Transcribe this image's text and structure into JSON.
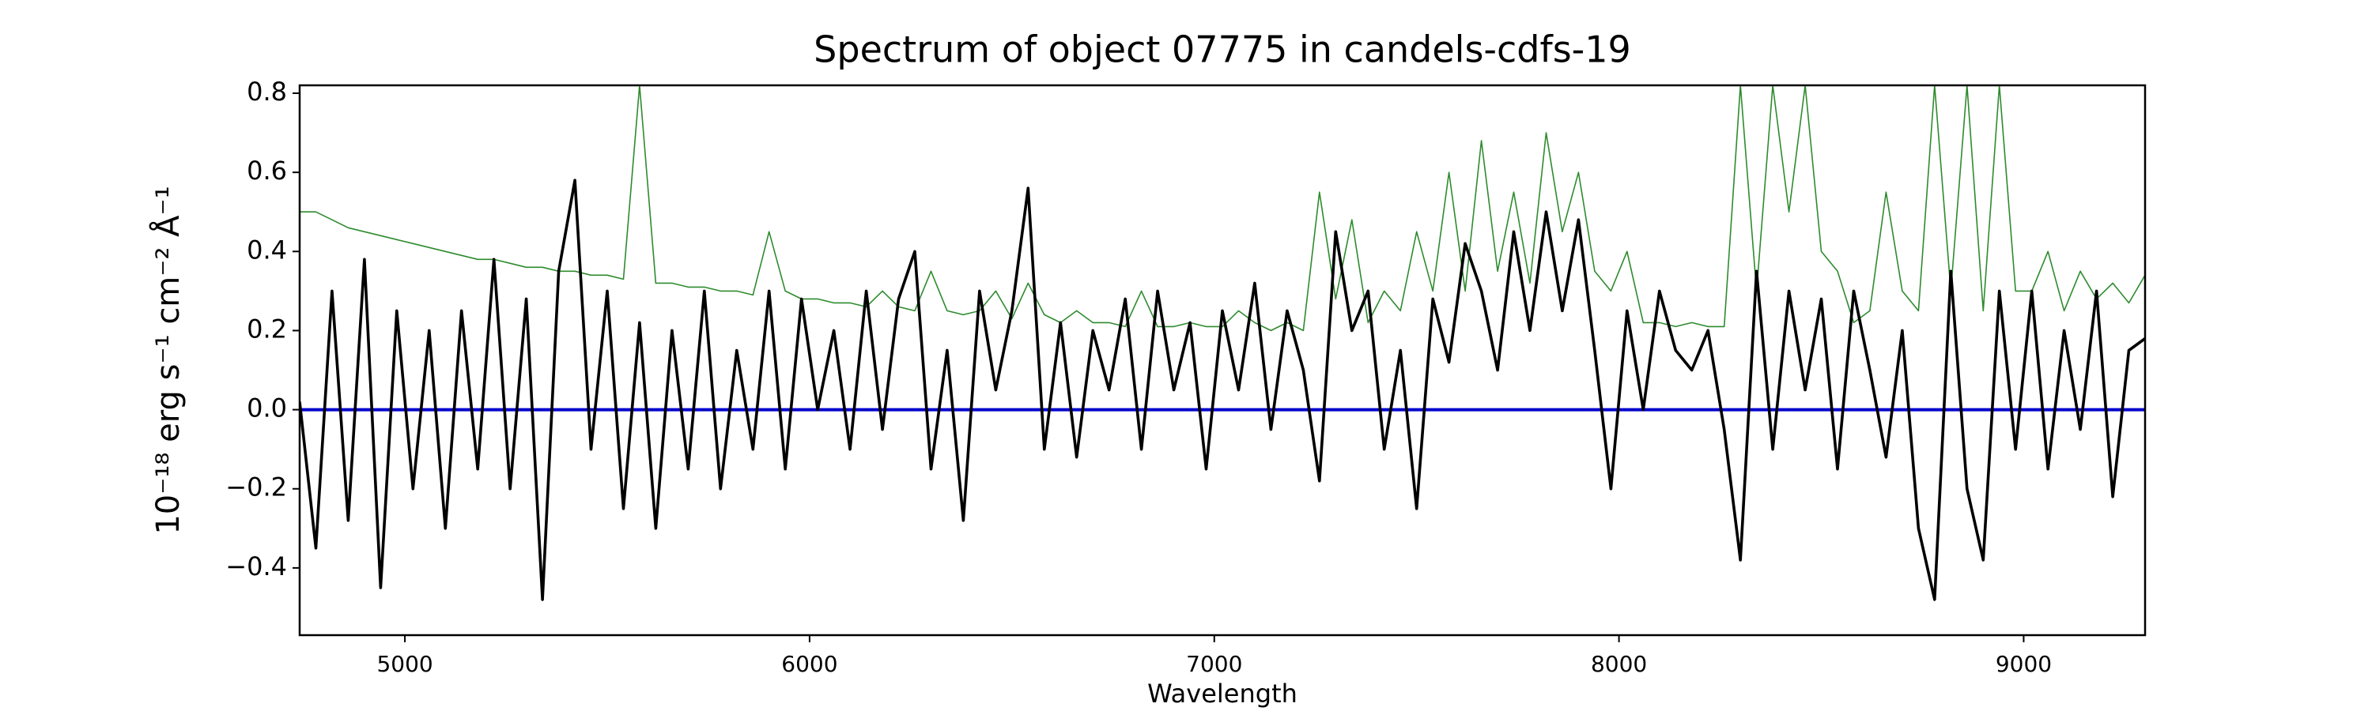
{
  "chart_data": {
    "type": "line",
    "title": "Spectrum of object 07775 in candels-cdfs-19",
    "x_label": "Wavelength",
    "y_label": "10⁻¹⁸ erg s⁻¹ cm⁻² Å⁻¹",
    "x": [
      4740,
      4780,
      4820,
      4860,
      4900,
      4940,
      4980,
      5020,
      5060,
      5100,
      5140,
      5180,
      5220,
      5260,
      5300,
      5340,
      5380,
      5420,
      5460,
      5500,
      5540,
      5580,
      5620,
      5660,
      5700,
      5740,
      5780,
      5820,
      5860,
      5900,
      5940,
      5980,
      6020,
      6060,
      6100,
      6140,
      6180,
      6220,
      6260,
      6300,
      6340,
      6380,
      6420,
      6460,
      6500,
      6540,
      6580,
      6620,
      6660,
      6700,
      6740,
      6780,
      6820,
      6860,
      6900,
      6940,
      6980,
      7020,
      7060,
      7100,
      7140,
      7180,
      7220,
      7260,
      7300,
      7340,
      7380,
      7420,
      7460,
      7500,
      7540,
      7580,
      7620,
      7660,
      7700,
      7740,
      7780,
      7820,
      7860,
      7900,
      7940,
      7980,
      8020,
      8060,
      8100,
      8140,
      8180,
      8220,
      8260,
      8300,
      8340,
      8380,
      8420,
      8460,
      8500,
      8540,
      8580,
      8620,
      8660,
      8700,
      8740,
      8780,
      8820,
      8860,
      8900,
      8940,
      8980,
      9020,
      9060,
      9100,
      9140,
      9180,
      9220,
      9260,
      9300
    ],
    "series": [
      {
        "color": "#2e8b2e",
        "values": [
          0.5,
          0.5,
          0.48,
          0.46,
          0.45,
          0.44,
          0.43,
          0.42,
          0.41,
          0.4,
          0.39,
          0.38,
          0.38,
          0.37,
          0.36,
          0.36,
          0.35,
          0.35,
          0.34,
          0.34,
          0.33,
          0.82,
          0.32,
          0.32,
          0.31,
          0.31,
          0.3,
          0.3,
          0.29,
          0.45,
          0.3,
          0.28,
          0.28,
          0.27,
          0.27,
          0.26,
          0.3,
          0.26,
          0.25,
          0.35,
          0.25,
          0.24,
          0.25,
          0.3,
          0.23,
          0.32,
          0.24,
          0.22,
          0.25,
          0.22,
          0.22,
          0.21,
          0.3,
          0.21,
          0.21,
          0.22,
          0.21,
          0.21,
          0.25,
          0.22,
          0.2,
          0.22,
          0.2,
          0.55,
          0.28,
          0.48,
          0.22,
          0.3,
          0.25,
          0.45,
          0.3,
          0.6,
          0.3,
          0.68,
          0.35,
          0.55,
          0.32,
          0.7,
          0.45,
          0.6,
          0.35,
          0.3,
          0.4,
          0.22,
          0.22,
          0.21,
          0.22,
          0.21,
          0.21,
          0.82,
          0.3,
          0.82,
          0.5,
          0.82,
          0.4,
          0.35,
          0.22,
          0.25,
          0.55,
          0.3,
          0.25,
          0.82,
          0.3,
          0.82,
          0.25,
          0.82,
          0.3,
          0.3,
          0.4,
          0.25,
          0.35,
          0.28,
          0.32,
          0.27,
          0.34
        ]
      },
      {
        "color": "#0000cc",
        "values": [
          0,
          0,
          0,
          0,
          0,
          0,
          0,
          0,
          0,
          0,
          0,
          0,
          0,
          0,
          0,
          0,
          0,
          0,
          0,
          0,
          0,
          0,
          0,
          0,
          0,
          0,
          0,
          0,
          0,
          0,
          0,
          0,
          0,
          0,
          0,
          0,
          0,
          0,
          0,
          0,
          0,
          0,
          0,
          0,
          0,
          0,
          0,
          0,
          0,
          0,
          0,
          0,
          0,
          0,
          0,
          0,
          0,
          0,
          0,
          0,
          0,
          0,
          0,
          0,
          0,
          0,
          0,
          0,
          0,
          0,
          0,
          0,
          0,
          0,
          0,
          0,
          0,
          0,
          0,
          0,
          0,
          0,
          0,
          0,
          0,
          0,
          0,
          0,
          0,
          0,
          0,
          0,
          0,
          0,
          0,
          0,
          0,
          0,
          0,
          0,
          0,
          0,
          0,
          0,
          0,
          0,
          0,
          0,
          0,
          0,
          0,
          0,
          0,
          0,
          0
        ]
      },
      {
        "color": "#000000",
        "values": [
          0.02,
          -0.35,
          0.3,
          -0.28,
          0.38,
          -0.45,
          0.25,
          -0.2,
          0.2,
          -0.3,
          0.25,
          -0.15,
          0.38,
          -0.2,
          0.28,
          -0.48,
          0.35,
          0.58,
          -0.1,
          0.3,
          -0.25,
          0.22,
          -0.3,
          0.2,
          -0.15,
          0.3,
          -0.2,
          0.15,
          -0.1,
          0.3,
          -0.15,
          0.28,
          0.0,
          0.2,
          -0.1,
          0.3,
          -0.05,
          0.28,
          0.4,
          -0.15,
          0.15,
          -0.28,
          0.3,
          0.05,
          0.25,
          0.56,
          -0.1,
          0.22,
          -0.12,
          0.2,
          0.05,
          0.28,
          -0.1,
          0.3,
          0.05,
          0.22,
          -0.15,
          0.25,
          0.05,
          0.32,
          -0.05,
          0.25,
          0.1,
          -0.18,
          0.45,
          0.2,
          0.3,
          -0.1,
          0.15,
          -0.25,
          0.28,
          0.12,
          0.42,
          0.3,
          0.1,
          0.45,
          0.2,
          0.5,
          0.25,
          0.48,
          0.15,
          -0.2,
          0.25,
          0.0,
          0.3,
          0.15,
          0.1,
          0.2,
          -0.05,
          -0.38,
          0.35,
          -0.1,
          0.3,
          0.05,
          0.28,
          -0.15,
          0.3,
          0.1,
          -0.12,
          0.2,
          -0.3,
          -0.48,
          0.35,
          -0.2,
          -0.38,
          0.3,
          -0.1,
          0.3,
          -0.15,
          0.2,
          -0.05,
          0.3,
          -0.22,
          0.15,
          0.18
        ]
      }
    ],
    "xlim": [
      4740,
      9300
    ],
    "ylim": [
      -0.57,
      0.82
    ],
    "xticks": [
      5000,
      6000,
      7000,
      8000,
      9000
    ],
    "yticks": [
      {
        "value": -0.4,
        "label": "−0.4"
      },
      {
        "value": -0.2,
        "label": "−0.2"
      },
      {
        "value": 0,
        "label": "0.0"
      },
      0.2,
      0.4,
      0.6,
      0.8
    ]
  }
}
